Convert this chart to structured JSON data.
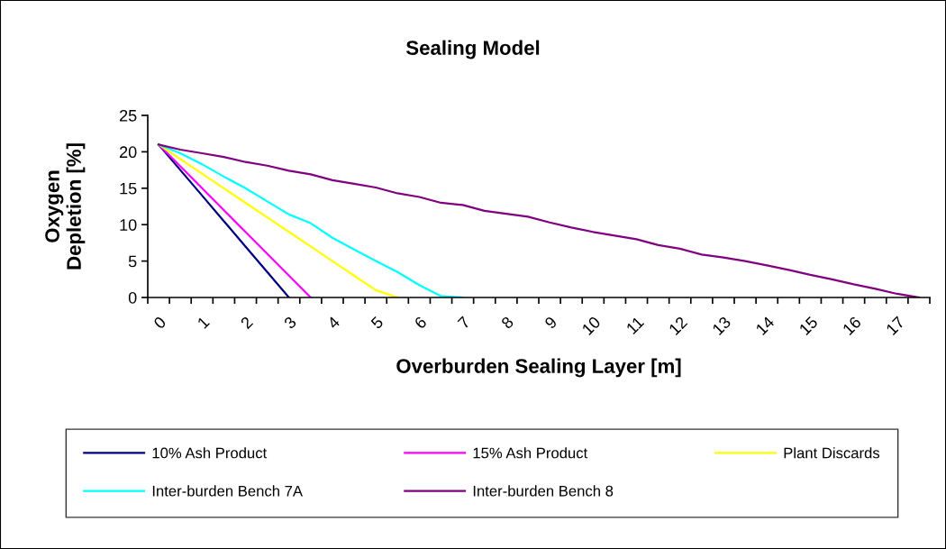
{
  "chart_data": {
    "type": "line",
    "title": "Sealing Model",
    "xlabel": "Overburden Sealing Layer [m]",
    "ylabel": "Oxygen\nDepletion [%]",
    "categories": [
      "0",
      null,
      "1",
      null,
      "2",
      null,
      "3",
      null,
      "4",
      null,
      "5",
      null,
      "6",
      null,
      "7",
      null,
      "8",
      null,
      "9",
      null,
      "10",
      null,
      "11",
      null,
      "12",
      null,
      "13",
      null,
      "14",
      null,
      "15",
      null,
      "16",
      null,
      "17",
      null
    ],
    "ylim": [
      0,
      25
    ],
    "yticks": [
      0,
      5,
      10,
      15,
      20,
      25
    ],
    "legend": "bottom",
    "marker": "none",
    "line_style": "solid",
    "series": [
      {
        "name": "10% Ash Product",
        "color": "#000080",
        "values": [
          21,
          17.5,
          14,
          10.5,
          7,
          3.5,
          0,
          null,
          null,
          null,
          null,
          null,
          null,
          null,
          null,
          null,
          null,
          null,
          null,
          null,
          null,
          null,
          null,
          null,
          null,
          null,
          null,
          null,
          null,
          null,
          null,
          null,
          null,
          null,
          null,
          null
        ]
      },
      {
        "name": "15% Ash Product",
        "color": "#ff00ff",
        "values": [
          21,
          18,
          15,
          12,
          9,
          6,
          3,
          0,
          null,
          null,
          null,
          null,
          null,
          null,
          null,
          null,
          null,
          null,
          null,
          null,
          null,
          null,
          null,
          null,
          null,
          null,
          null,
          null,
          null,
          null,
          null,
          null,
          null,
          null,
          null,
          null
        ]
      },
      {
        "name": "Plant Discards",
        "color": "#ffff00",
        "values": [
          21,
          19,
          17,
          15,
          13,
          11,
          9,
          7,
          5,
          3,
          1,
          0,
          null,
          null,
          null,
          null,
          null,
          null,
          null,
          null,
          null,
          null,
          null,
          null,
          null,
          null,
          null,
          null,
          null,
          null,
          null,
          null,
          null,
          null,
          null,
          null
        ]
      },
      {
        "name": "Inter-burden Bench 7A",
        "color": "#00ffff",
        "values": [
          21,
          19.8,
          18.3,
          16.6,
          15,
          13.2,
          11.4,
          10.2,
          8.2,
          6.6,
          5,
          3.5,
          1.7,
          0.2,
          0,
          null,
          null,
          null,
          null,
          null,
          null,
          null,
          null,
          null,
          null,
          null,
          null,
          null,
          null,
          null,
          null,
          null,
          null,
          null,
          null,
          null
        ]
      },
      {
        "name": "Inter-burden Bench 8",
        "color": "#800080",
        "values": [
          21,
          20.3,
          19.8,
          19.3,
          18.6,
          18.1,
          17.4,
          16.9,
          16.1,
          15.6,
          15.1,
          14.3,
          13.8,
          13,
          12.7,
          11.9,
          11.5,
          11.1,
          10.3,
          9.6,
          9,
          8.5,
          8,
          7.2,
          6.7,
          5.9,
          5.5,
          5,
          4.4,
          3.8,
          3.1,
          2.5,
          1.8,
          1.2,
          0.5,
          0
        ]
      }
    ]
  }
}
